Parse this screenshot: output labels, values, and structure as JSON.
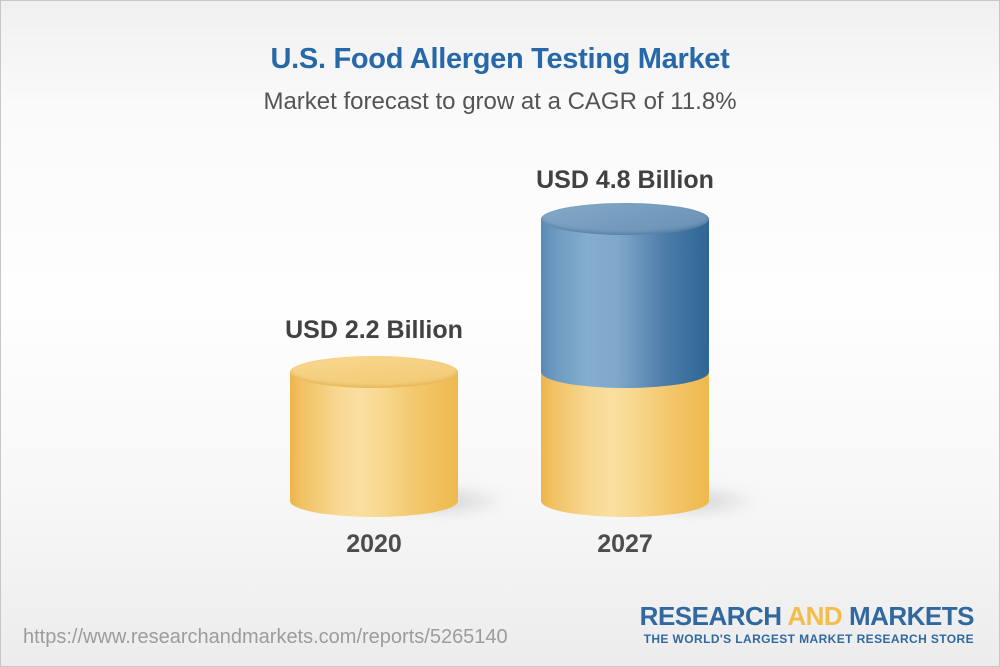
{
  "header": {
    "title": "U.S. Food Allergen Testing Market",
    "subtitle": "Market forecast to grow at a CAGR of 11.8%"
  },
  "chart_data": {
    "type": "bar",
    "style": "3d-cylinder",
    "title": "U.S. Food Allergen Testing Market",
    "subtitle": "Market forecast to grow at a CAGR of 11.8%",
    "categories": [
      "2020",
      "2027"
    ],
    "values": [
      2.2,
      4.8
    ],
    "unit": "USD Billion",
    "value_labels": [
      "USD 2.2 Billion",
      "USD 4.8 Billion"
    ],
    "cagr_percent": 11.8,
    "legend": "none",
    "grid": "off",
    "colors": {
      "base_cylinder_yellow": "#F5CE7E",
      "growth_cylinder_blue": "#6E96B9",
      "title_blue": "#2768A8",
      "label_gray": "#414042"
    },
    "annotation": "2027 cylinder shows blue growth segment stacked on yellow base equal to the 2020 value"
  },
  "footer": {
    "source_url": "https://www.researchandmarkets.com/reports/5265140",
    "logo": {
      "word1": "RESEARCH",
      "word2": "AND",
      "word3": "MARKETS",
      "tagline": "THE WORLD'S LARGEST MARKET RESEARCH STORE",
      "blue": "#31699E",
      "gold": "#F3BD4A"
    }
  }
}
